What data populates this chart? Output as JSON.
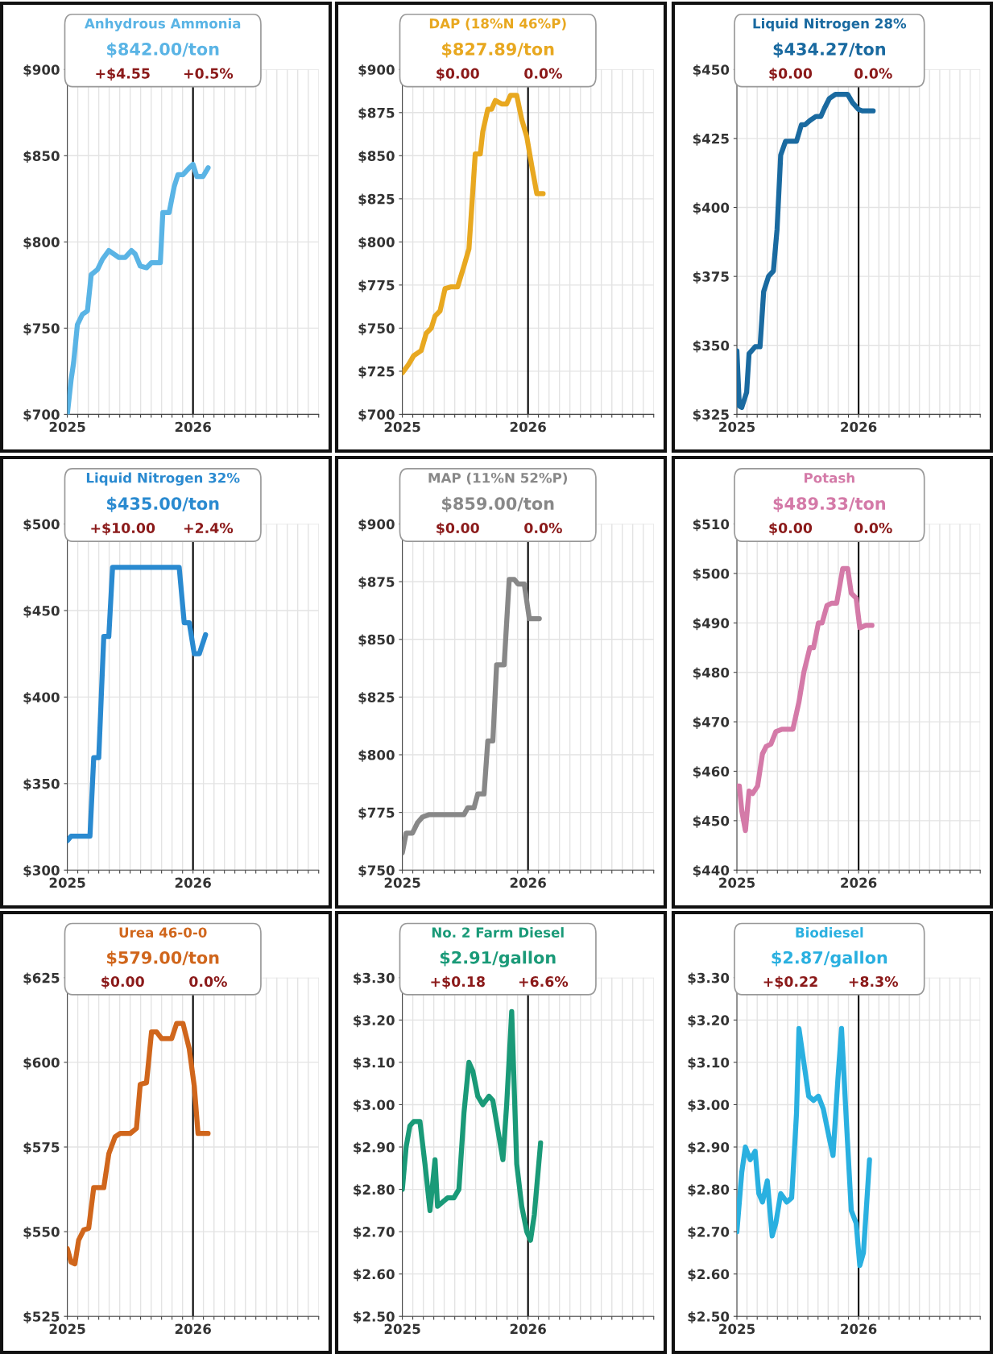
{
  "chart_data": [
    {
      "type": "line",
      "title": "Anhydrous Ammonia",
      "subtitle": "$842.00/ton",
      "annotations": [
        "+$4.55",
        "+0.5%"
      ],
      "grid": true,
      "xlim": [
        2025,
        2027
      ],
      "ylim": [
        700,
        900
      ],
      "xticks": [
        2025,
        {
          "value": 2025.083,
          "label": null
        },
        {
          "value": 2025.167,
          "label": null
        },
        {
          "value": 2025.25,
          "label": null
        },
        {
          "value": 2025.333,
          "label": null
        },
        {
          "value": 2025.417,
          "label": null
        },
        {
          "value": 2025.5,
          "label": null
        },
        {
          "value": 2025.583,
          "label": null
        },
        {
          "value": 2025.667,
          "label": null
        },
        {
          "value": 2025.75,
          "label": null
        },
        {
          "value": 2025.833,
          "label": null
        },
        {
          "value": 2025.917,
          "label": null
        },
        2026,
        {
          "value": 2026.083,
          "label": null
        },
        {
          "value": 2026.167,
          "label": null
        },
        {
          "value": 2026.25,
          "label": null
        },
        {
          "value": 2026.333,
          "label": null
        },
        {
          "value": 2026.417,
          "label": null
        },
        {
          "value": 2026.5,
          "label": null
        },
        {
          "value": 2026.583,
          "label": null
        },
        {
          "value": 2026.667,
          "label": null
        },
        {
          "value": 2026.75,
          "label": null
        },
        {
          "value": 2026.833,
          "label": null
        },
        {
          "value": 2026.917,
          "label": null
        },
        {
          "value": 2027,
          "label": null
        }
      ],
      "yticks": [
        {
          "value": 700,
          "label": "$700"
        },
        {
          "value": 750,
          "label": "$750"
        },
        {
          "value": 800,
          "label": "$800"
        },
        {
          "value": 850,
          "label": "$850"
        },
        {
          "value": 900,
          "label": "$900"
        }
      ],
      "ref_lines": [
        {
          "axis": "x",
          "value": 2026,
          "color": "#000000"
        }
      ],
      "x": [
        2025.0,
        2025.03,
        2025.05,
        2025.08,
        2025.12,
        2025.16,
        2025.19,
        2025.24,
        2025.28,
        2025.33,
        2025.37,
        2025.41,
        2025.46,
        2025.51,
        2025.54,
        2025.58,
        2025.63,
        2025.67,
        2025.74,
        2025.76,
        2025.81,
        2025.85,
        2025.88,
        2025.92,
        2025.97,
        2026.0,
        2026.03,
        2026.08,
        2026.12
      ],
      "series": [
        {
          "color": "#5ab4e5",
          "values": [
            700,
            720,
            730,
            752,
            758,
            760,
            781,
            784,
            790,
            795,
            793,
            791,
            791,
            795,
            793,
            786,
            785,
            788,
            788,
            817,
            817,
            832,
            839,
            839,
            843,
            845,
            838,
            838,
            843
          ]
        }
      ]
    },
    {
      "type": "line",
      "title": "DAP (18%N 46%P)",
      "subtitle": "$827.89/ton",
      "annotations": [
        "$0.00",
        "0.0%"
      ],
      "grid": true,
      "xlim": [
        2025,
        2027
      ],
      "ylim": [
        700,
        900
      ],
      "xticks": [
        2025,
        {
          "value": 2025.083,
          "label": null
        },
        {
          "value": 2025.167,
          "label": null
        },
        {
          "value": 2025.25,
          "label": null
        },
        {
          "value": 2025.333,
          "label": null
        },
        {
          "value": 2025.417,
          "label": null
        },
        {
          "value": 2025.5,
          "label": null
        },
        {
          "value": 2025.583,
          "label": null
        },
        {
          "value": 2025.667,
          "label": null
        },
        {
          "value": 2025.75,
          "label": null
        },
        {
          "value": 2025.833,
          "label": null
        },
        {
          "value": 2025.917,
          "label": null
        },
        2026,
        {
          "value": 2026.083,
          "label": null
        },
        {
          "value": 2026.167,
          "label": null
        },
        {
          "value": 2026.25,
          "label": null
        },
        {
          "value": 2026.333,
          "label": null
        },
        {
          "value": 2026.417,
          "label": null
        },
        {
          "value": 2026.5,
          "label": null
        },
        {
          "value": 2026.583,
          "label": null
        },
        {
          "value": 2026.667,
          "label": null
        },
        {
          "value": 2026.75,
          "label": null
        },
        {
          "value": 2026.833,
          "label": null
        },
        {
          "value": 2026.917,
          "label": null
        },
        {
          "value": 2027,
          "label": null
        }
      ],
      "yticks": [
        {
          "value": 700,
          "label": "$700"
        },
        {
          "value": 725,
          "label": "$725"
        },
        {
          "value": 750,
          "label": "$750"
        },
        {
          "value": 775,
          "label": "$775"
        },
        {
          "value": 800,
          "label": "$800"
        },
        {
          "value": 825,
          "label": "$825"
        },
        {
          "value": 850,
          "label": "$850"
        },
        {
          "value": 875,
          "label": "$875"
        },
        {
          "value": 900,
          "label": "$900"
        }
      ],
      "ref_lines": [
        {
          "axis": "x",
          "value": 2026,
          "color": "#000000"
        }
      ],
      "x": [
        2025.0,
        2025.05,
        2025.09,
        2025.15,
        2025.19,
        2025.23,
        2025.26,
        2025.3,
        2025.34,
        2025.39,
        2025.44,
        2025.49,
        2025.53,
        2025.58,
        2025.62,
        2025.64,
        2025.68,
        2025.71,
        2025.74,
        2025.79,
        2025.83,
        2025.86,
        2025.91,
        2025.95,
        2025.99,
        2026.03,
        2026.07,
        2026.12
      ],
      "series": [
        {
          "color": "#e8a820",
          "values": [
            724,
            729,
            734,
            737,
            747,
            750,
            757,
            760,
            773,
            774,
            774,
            786,
            796,
            851,
            851,
            864,
            877,
            877,
            882,
            880,
            880,
            885,
            885,
            871,
            861,
            844,
            828,
            828
          ]
        }
      ]
    },
    {
      "type": "line",
      "title": "Liquid Nitrogen 28%",
      "subtitle": "$434.27/ton",
      "annotations": [
        "$0.00",
        "0.0%"
      ],
      "grid": true,
      "xlim": [
        2025,
        2027
      ],
      "ylim": [
        325,
        450
      ],
      "xticks": [
        2025,
        {
          "value": 2025.083,
          "label": null
        },
        {
          "value": 2025.167,
          "label": null
        },
        {
          "value": 2025.25,
          "label": null
        },
        {
          "value": 2025.333,
          "label": null
        },
        {
          "value": 2025.417,
          "label": null
        },
        {
          "value": 2025.5,
          "label": null
        },
        {
          "value": 2025.583,
          "label": null
        },
        {
          "value": 2025.667,
          "label": null
        },
        {
          "value": 2025.75,
          "label": null
        },
        {
          "value": 2025.833,
          "label": null
        },
        {
          "value": 2025.917,
          "label": null
        },
        2026,
        {
          "value": 2026.083,
          "label": null
        },
        {
          "value": 2026.167,
          "label": null
        },
        {
          "value": 2026.25,
          "label": null
        },
        {
          "value": 2026.333,
          "label": null
        },
        {
          "value": 2026.417,
          "label": null
        },
        {
          "value": 2026.5,
          "label": null
        },
        {
          "value": 2026.583,
          "label": null
        },
        {
          "value": 2026.667,
          "label": null
        },
        {
          "value": 2026.75,
          "label": null
        },
        {
          "value": 2026.833,
          "label": null
        },
        {
          "value": 2026.917,
          "label": null
        },
        {
          "value": 2027,
          "label": null
        }
      ],
      "yticks": [
        {
          "value": 325,
          "label": "$325"
        },
        {
          "value": 350,
          "label": "$350"
        },
        {
          "value": 375,
          "label": "$375"
        },
        {
          "value": 400,
          "label": "$400"
        },
        {
          "value": 425,
          "label": "$425"
        },
        {
          "value": 450,
          "label": "$450"
        }
      ],
      "ref_lines": [
        {
          "axis": "x",
          "value": 2026,
          "color": "#000000"
        }
      ],
      "x": [
        2025.0,
        2025.02,
        2025.04,
        2025.08,
        2025.1,
        2025.15,
        2025.19,
        2025.22,
        2025.26,
        2025.3,
        2025.33,
        2025.36,
        2025.4,
        2025.44,
        2025.49,
        2025.53,
        2025.56,
        2025.6,
        2025.65,
        2025.69,
        2025.72,
        2025.76,
        2025.81,
        2025.86,
        2025.91,
        2025.95,
        2026.0,
        2026.03,
        2026.12
      ],
      "series": [
        {
          "color": "#1a6aa0",
          "values": [
            348,
            328,
            327.5,
            333,
            347,
            349.5,
            349.5,
            369.5,
            375,
            377,
            392,
            419,
            424,
            424,
            424,
            430,
            430,
            431.5,
            433,
            433,
            436,
            439.5,
            441,
            441,
            441,
            438,
            435.5,
            435,
            435
          ]
        }
      ]
    },
    {
      "type": "line",
      "title": "Liquid Nitrogen 32%",
      "subtitle": "$435.00/ton",
      "annotations": [
        "+$10.00",
        "+2.4%"
      ],
      "grid": true,
      "xlim": [
        2025,
        2027
      ],
      "ylim": [
        300,
        500
      ],
      "xticks": [
        2025,
        {
          "value": 2025.083,
          "label": null
        },
        {
          "value": 2025.167,
          "label": null
        },
        {
          "value": 2025.25,
          "label": null
        },
        {
          "value": 2025.333,
          "label": null
        },
        {
          "value": 2025.417,
          "label": null
        },
        {
          "value": 2025.5,
          "label": null
        },
        {
          "value": 2025.583,
          "label": null
        },
        {
          "value": 2025.667,
          "label": null
        },
        {
          "value": 2025.75,
          "label": null
        },
        {
          "value": 2025.833,
          "label": null
        },
        {
          "value": 2025.917,
          "label": null
        },
        2026,
        {
          "value": 2026.083,
          "label": null
        },
        {
          "value": 2026.167,
          "label": null
        },
        {
          "value": 2026.25,
          "label": null
        },
        {
          "value": 2026.333,
          "label": null
        },
        {
          "value": 2026.417,
          "label": null
        },
        {
          "value": 2026.5,
          "label": null
        },
        {
          "value": 2026.583,
          "label": null
        },
        {
          "value": 2026.667,
          "label": null
        },
        {
          "value": 2026.75,
          "label": null
        },
        {
          "value": 2026.833,
          "label": null
        },
        {
          "value": 2026.917,
          "label": null
        },
        {
          "value": 2027,
          "label": null
        }
      ],
      "yticks": [
        {
          "value": 300,
          "label": "$300"
        },
        {
          "value": 350,
          "label": "$350"
        },
        {
          "value": 400,
          "label": "$400"
        },
        {
          "value": 450,
          "label": "$450"
        },
        {
          "value": 500,
          "label": "$500"
        }
      ],
      "ref_lines": [
        {
          "axis": "x",
          "value": 2026,
          "color": "#000000"
        }
      ],
      "x": [
        2025.0,
        2025.03,
        2025.1,
        2025.18,
        2025.21,
        2025.25,
        2025.29,
        2025.33,
        2025.36,
        2025.41,
        2025.89,
        2025.93,
        2025.97,
        2026.01,
        2026.05,
        2026.1
      ],
      "series": [
        {
          "color": "#2a8ad0",
          "values": [
            317,
            319.6,
            319.6,
            319.6,
            365,
            365,
            435,
            435,
            475,
            475,
            475,
            443,
            443,
            425,
            425,
            436
          ]
        }
      ]
    },
    {
      "type": "line",
      "title": "MAP (11%N 52%P)",
      "subtitle": "$859.00/ton",
      "annotations": [
        "$0.00",
        "0.0%"
      ],
      "grid": true,
      "xlim": [
        2025,
        2027
      ],
      "ylim": [
        750,
        900
      ],
      "xticks": [
        2025,
        {
          "value": 2025.083,
          "label": null
        },
        {
          "value": 2025.167,
          "label": null
        },
        {
          "value": 2025.25,
          "label": null
        },
        {
          "value": 2025.333,
          "label": null
        },
        {
          "value": 2025.417,
          "label": null
        },
        {
          "value": 2025.5,
          "label": null
        },
        {
          "value": 2025.583,
          "label": null
        },
        {
          "value": 2025.667,
          "label": null
        },
        {
          "value": 2025.75,
          "label": null
        },
        {
          "value": 2025.833,
          "label": null
        },
        {
          "value": 2025.917,
          "label": null
        },
        2026,
        {
          "value": 2026.083,
          "label": null
        },
        {
          "value": 2026.167,
          "label": null
        },
        {
          "value": 2026.25,
          "label": null
        },
        {
          "value": 2026.333,
          "label": null
        },
        {
          "value": 2026.417,
          "label": null
        },
        {
          "value": 2026.5,
          "label": null
        },
        {
          "value": 2026.583,
          "label": null
        },
        {
          "value": 2026.667,
          "label": null
        },
        {
          "value": 2026.75,
          "label": null
        },
        {
          "value": 2026.833,
          "label": null
        },
        {
          "value": 2026.917,
          "label": null
        },
        {
          "value": 2027,
          "label": null
        }
      ],
      "yticks": [
        {
          "value": 750,
          "label": "$750"
        },
        {
          "value": 775,
          "label": "$775"
        },
        {
          "value": 800,
          "label": "$800"
        },
        {
          "value": 825,
          "label": "$825"
        },
        {
          "value": 850,
          "label": "$850"
        },
        {
          "value": 875,
          "label": "$875"
        },
        {
          "value": 900,
          "label": "$900"
        }
      ],
      "ref_lines": [
        {
          "axis": "x",
          "value": 2026,
          "color": "#000000"
        }
      ],
      "x": [
        2025.0,
        2025.03,
        2025.08,
        2025.12,
        2025.16,
        2025.21,
        2025.28,
        2025.38,
        2025.49,
        2025.52,
        2025.57,
        2025.6,
        2025.65,
        2025.68,
        2025.72,
        2025.75,
        2025.81,
        2025.85,
        2025.89,
        2025.92,
        2025.97,
        2026.01,
        2026.09
      ],
      "series": [
        {
          "color": "#888888",
          "values": [
            757.5,
            766,
            766,
            770.5,
            773,
            774,
            774,
            774,
            774,
            777,
            777,
            783,
            783,
            806,
            806,
            839,
            839,
            876,
            876,
            874,
            874,
            859,
            859
          ]
        }
      ]
    },
    {
      "type": "line",
      "title": "Potash",
      "subtitle": "$489.33/ton",
      "annotations": [
        "$0.00",
        "0.0%"
      ],
      "grid": true,
      "xlim": [
        2025,
        2027
      ],
      "ylim": [
        440,
        510
      ],
      "xticks": [
        2025,
        {
          "value": 2025.083,
          "label": null
        },
        {
          "value": 2025.167,
          "label": null
        },
        {
          "value": 2025.25,
          "label": null
        },
        {
          "value": 2025.333,
          "label": null
        },
        {
          "value": 2025.417,
          "label": null
        },
        {
          "value": 2025.5,
          "label": null
        },
        {
          "value": 2025.583,
          "label": null
        },
        {
          "value": 2025.667,
          "label": null
        },
        {
          "value": 2025.75,
          "label": null
        },
        {
          "value": 2025.833,
          "label": null
        },
        {
          "value": 2025.917,
          "label": null
        },
        2026,
        {
          "value": 2026.083,
          "label": null
        },
        {
          "value": 2026.167,
          "label": null
        },
        {
          "value": 2026.25,
          "label": null
        },
        {
          "value": 2026.333,
          "label": null
        },
        {
          "value": 2026.417,
          "label": null
        },
        {
          "value": 2026.5,
          "label": null
        },
        {
          "value": 2026.583,
          "label": null
        },
        {
          "value": 2026.667,
          "label": null
        },
        {
          "value": 2026.75,
          "label": null
        },
        {
          "value": 2026.833,
          "label": null
        },
        {
          "value": 2026.917,
          "label": null
        },
        {
          "value": 2027,
          "label": null
        }
      ],
      "yticks": [
        {
          "value": 440,
          "label": "$440"
        },
        {
          "value": 450,
          "label": "$450"
        },
        {
          "value": 460,
          "label": "$460"
        },
        {
          "value": 470,
          "label": "$470"
        },
        {
          "value": 480,
          "label": "$480"
        },
        {
          "value": 490,
          "label": "$490"
        },
        {
          "value": 500,
          "label": "$500"
        },
        {
          "value": 510,
          "label": "$510"
        }
      ],
      "ref_lines": [
        {
          "axis": "x",
          "value": 2026,
          "color": "#000000"
        }
      ],
      "x": [
        2025.0,
        2025.02,
        2025.04,
        2025.07,
        2025.1,
        2025.13,
        2025.17,
        2025.21,
        2025.24,
        2025.28,
        2025.32,
        2025.37,
        2025.46,
        2025.51,
        2025.55,
        2025.6,
        2025.63,
        2025.67,
        2025.7,
        2025.74,
        2025.78,
        2025.82,
        2025.87,
        2025.91,
        2025.94,
        2025.98,
        2026.01,
        2026.06,
        2026.11
      ],
      "series": [
        {
          "color": "#d47aa8",
          "values": [
            457,
            457,
            452,
            448,
            456,
            455.5,
            457,
            463.5,
            465,
            465.5,
            468,
            468.5,
            468.5,
            474,
            480,
            485,
            485,
            490,
            490,
            493.5,
            494,
            494,
            501,
            501,
            496,
            495,
            489,
            489.5,
            489.5
          ]
        }
      ]
    },
    {
      "type": "line",
      "title": "Urea 46-0-0",
      "subtitle": "$579.00/ton",
      "annotations": [
        "$0.00",
        "0.0%"
      ],
      "grid": true,
      "xlim": [
        2025,
        2027
      ],
      "ylim": [
        525,
        625
      ],
      "xticks": [
        2025,
        {
          "value": 2025.083,
          "label": null
        },
        {
          "value": 2025.167,
          "label": null
        },
        {
          "value": 2025.25,
          "label": null
        },
        {
          "value": 2025.333,
          "label": null
        },
        {
          "value": 2025.417,
          "label": null
        },
        {
          "value": 2025.5,
          "label": null
        },
        {
          "value": 2025.583,
          "label": null
        },
        {
          "value": 2025.667,
          "label": null
        },
        {
          "value": 2025.75,
          "label": null
        },
        {
          "value": 2025.833,
          "label": null
        },
        {
          "value": 2025.917,
          "label": null
        },
        2026,
        {
          "value": 2026.083,
          "label": null
        },
        {
          "value": 2026.167,
          "label": null
        },
        {
          "value": 2026.25,
          "label": null
        },
        {
          "value": 2026.333,
          "label": null
        },
        {
          "value": 2026.417,
          "label": null
        },
        {
          "value": 2026.5,
          "label": null
        },
        {
          "value": 2026.583,
          "label": null
        },
        {
          "value": 2026.667,
          "label": null
        },
        {
          "value": 2026.75,
          "label": null
        },
        {
          "value": 2026.833,
          "label": null
        },
        {
          "value": 2026.917,
          "label": null
        },
        {
          "value": 2027,
          "label": null
        }
      ],
      "yticks": [
        {
          "value": 525,
          "label": "$525"
        },
        {
          "value": 550,
          "label": "$550"
        },
        {
          "value": 575,
          "label": "$575"
        },
        {
          "value": 600,
          "label": "$600"
        },
        {
          "value": 625,
          "label": "$625"
        }
      ],
      "ref_lines": [
        {
          "axis": "x",
          "value": 2026,
          "color": "#000000"
        }
      ],
      "x": [
        2025.0,
        2025.03,
        2025.06,
        2025.09,
        2025.13,
        2025.17,
        2025.21,
        2025.26,
        2025.29,
        2025.33,
        2025.38,
        2025.42,
        2025.5,
        2025.55,
        2025.58,
        2025.63,
        2025.67,
        2025.71,
        2025.75,
        2025.83,
        2025.87,
        2025.92,
        2025.97,
        2026.01,
        2026.04,
        2026.12
      ],
      "series": [
        {
          "color": "#d0661c",
          "values": [
            545,
            541,
            540.5,
            547.5,
            550.5,
            551,
            563,
            563,
            563,
            573,
            578,
            579,
            579,
            580.5,
            593.5,
            594,
            609,
            609,
            607,
            607,
            611.5,
            611.5,
            604,
            593,
            579,
            579
          ]
        }
      ]
    },
    {
      "type": "line",
      "title": "No. 2 Farm Diesel",
      "subtitle": "$2.91/gallon",
      "annotations": [
        "+$0.18",
        "+6.6%"
      ],
      "grid": true,
      "xlim": [
        2025,
        2027
      ],
      "ylim": [
        2.5,
        3.3
      ],
      "xticks": [
        2025,
        {
          "value": 2025.083,
          "label": null
        },
        {
          "value": 2025.167,
          "label": null
        },
        {
          "value": 2025.25,
          "label": null
        },
        {
          "value": 2025.333,
          "label": null
        },
        {
          "value": 2025.417,
          "label": null
        },
        {
          "value": 2025.5,
          "label": null
        },
        {
          "value": 2025.583,
          "label": null
        },
        {
          "value": 2025.667,
          "label": null
        },
        {
          "value": 2025.75,
          "label": null
        },
        {
          "value": 2025.833,
          "label": null
        },
        {
          "value": 2025.917,
          "label": null
        },
        2026,
        {
          "value": 2026.083,
          "label": null
        },
        {
          "value": 2026.167,
          "label": null
        },
        {
          "value": 2026.25,
          "label": null
        },
        {
          "value": 2026.333,
          "label": null
        },
        {
          "value": 2026.417,
          "label": null
        },
        {
          "value": 2026.5,
          "label": null
        },
        {
          "value": 2026.583,
          "label": null
        },
        {
          "value": 2026.667,
          "label": null
        },
        {
          "value": 2026.75,
          "label": null
        },
        {
          "value": 2026.833,
          "label": null
        },
        {
          "value": 2026.917,
          "label": null
        },
        {
          "value": 2027,
          "label": null
        }
      ],
      "yticks": [
        {
          "value": 2.5,
          "label": "$2.50"
        },
        {
          "value": 2.6,
          "label": "$2.60"
        },
        {
          "value": 2.7,
          "label": "$2.70"
        },
        {
          "value": 2.8,
          "label": "$2.80"
        },
        {
          "value": 2.9,
          "label": "$2.90"
        },
        {
          "value": 3.0,
          "label": "$3.00"
        },
        {
          "value": 3.1,
          "label": "$3.10"
        },
        {
          "value": 3.2,
          "label": "$3.20"
        },
        {
          "value": 3.3,
          "label": "$3.30"
        }
      ],
      "ref_lines": [
        {
          "axis": "x",
          "value": 2026,
          "color": "#000000"
        }
      ],
      "x": [
        2025.0,
        2025.03,
        2025.06,
        2025.09,
        2025.14,
        2025.18,
        2025.22,
        2025.26,
        2025.28,
        2025.32,
        2025.36,
        2025.41,
        2025.45,
        2025.49,
        2025.53,
        2025.56,
        2025.6,
        2025.64,
        2025.69,
        2025.72,
        2025.76,
        2025.8,
        2025.83,
        2025.87,
        2025.91,
        2025.95,
        2025.99,
        2026.02,
        2026.05,
        2026.1
      ],
      "series": [
        {
          "color": "#1a9a78",
          "values": [
            2.8,
            2.9,
            2.95,
            2.96,
            2.96,
            2.86,
            2.75,
            2.87,
            2.76,
            2.77,
            2.78,
            2.78,
            2.8,
            2.98,
            3.1,
            3.08,
            3.02,
            3.0,
            3.02,
            3.01,
            2.94,
            2.87,
            3.0,
            3.22,
            2.86,
            2.76,
            2.7,
            2.68,
            2.74,
            2.91
          ]
        }
      ]
    },
    {
      "type": "line",
      "title": "Biodiesel",
      "subtitle": "$2.87/gallon",
      "annotations": [
        "+$0.22",
        "+8.3%"
      ],
      "grid": true,
      "xlim": [
        2025,
        2027
      ],
      "ylim": [
        2.5,
        3.3
      ],
      "xticks": [
        2025,
        {
          "value": 2025.083,
          "label": null
        },
        {
          "value": 2025.167,
          "label": null
        },
        {
          "value": 2025.25,
          "label": null
        },
        {
          "value": 2025.333,
          "label": null
        },
        {
          "value": 2025.417,
          "label": null
        },
        {
          "value": 2025.5,
          "label": null
        },
        {
          "value": 2025.583,
          "label": null
        },
        {
          "value": 2025.667,
          "label": null
        },
        {
          "value": 2025.75,
          "label": null
        },
        {
          "value": 2025.833,
          "label": null
        },
        {
          "value": 2025.917,
          "label": null
        },
        2026,
        {
          "value": 2026.083,
          "label": null
        },
        {
          "value": 2026.167,
          "label": null
        },
        {
          "value": 2026.25,
          "label": null
        },
        {
          "value": 2026.333,
          "label": null
        },
        {
          "value": 2026.417,
          "label": null
        },
        {
          "value": 2026.5,
          "label": null
        },
        {
          "value": 2026.583,
          "label": null
        },
        {
          "value": 2026.667,
          "label": null
        },
        {
          "value": 2026.75,
          "label": null
        },
        {
          "value": 2026.833,
          "label": null
        },
        {
          "value": 2026.917,
          "label": null
        },
        {
          "value": 2027,
          "label": null
        }
      ],
      "yticks": [
        {
          "value": 2.5,
          "label": "$2.50"
        },
        {
          "value": 2.6,
          "label": "$2.60"
        },
        {
          "value": 2.7,
          "label": "$2.70"
        },
        {
          "value": 2.8,
          "label": "$2.80"
        },
        {
          "value": 2.9,
          "label": "$2.90"
        },
        {
          "value": 3.0,
          "label": "$3.00"
        },
        {
          "value": 3.1,
          "label": "$3.10"
        },
        {
          "value": 3.2,
          "label": "$3.20"
        },
        {
          "value": 3.3,
          "label": "$3.30"
        }
      ],
      "ref_lines": [
        {
          "axis": "x",
          "value": 2026,
          "color": "#000000"
        }
      ],
      "x": [
        2025.0,
        2025.04,
        2025.07,
        2025.11,
        2025.15,
        2025.18,
        2025.21,
        2025.25,
        2025.29,
        2025.32,
        2025.36,
        2025.41,
        2025.45,
        2025.49,
        2025.51,
        2025.56,
        2025.59,
        2025.63,
        2025.67,
        2025.71,
        2025.76,
        2025.79,
        2025.83,
        2025.86,
        2025.9,
        2025.94,
        2025.98,
        2026.01,
        2026.04,
        2026.09
      ],
      "series": [
        {
          "color": "#2ab0e0",
          "values": [
            2.7,
            2.84,
            2.9,
            2.87,
            2.89,
            2.79,
            2.77,
            2.82,
            2.69,
            2.72,
            2.79,
            2.77,
            2.78,
            2.98,
            3.18,
            3.08,
            3.02,
            3.01,
            3.02,
            2.99,
            2.92,
            2.88,
            3.06,
            3.18,
            2.96,
            2.75,
            2.72,
            2.62,
            2.65,
            2.87
          ]
        }
      ]
    }
  ]
}
